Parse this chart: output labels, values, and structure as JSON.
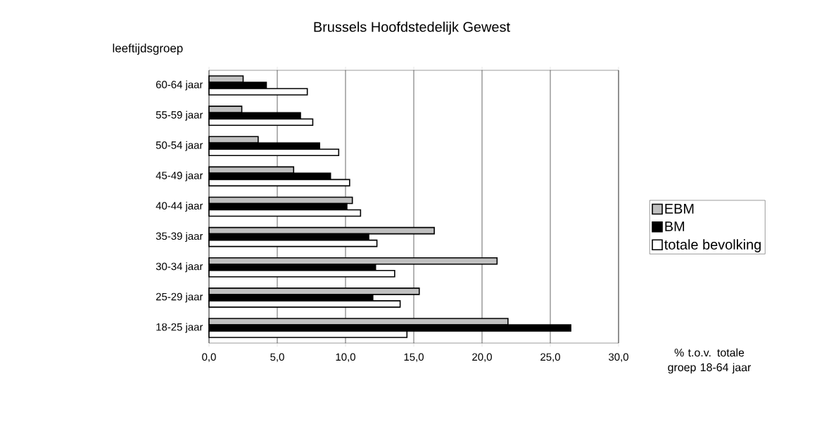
{
  "chart_data": {
    "type": "bar",
    "orientation": "horizontal",
    "title": "Brussels Hoofdstedelijk Gewest",
    "ylabel": "leeftijdsgroep",
    "xlabel": "% t.o.v. totale groep 18-64 jaar",
    "categories": [
      "60-64 jaar",
      "55-59 jaar",
      "50-54 jaar",
      "45-49 jaar",
      "40-44 jaar",
      "35-39 jaar",
      "30-34 jaar",
      "25-29 jaar",
      "18-25 jaar"
    ],
    "series": [
      {
        "name": "EBM",
        "color": "#c0c0c0",
        "values": [
          2.5,
          2.4,
          3.6,
          6.2,
          10.5,
          16.5,
          21.1,
          15.4,
          21.9
        ]
      },
      {
        "name": "BM",
        "color": "#000000",
        "values": [
          4.2,
          6.7,
          8.1,
          8.9,
          10.1,
          11.7,
          12.2,
          12.0,
          26.5
        ]
      },
      {
        "name": "totale bevolking",
        "color": "#ffffff",
        "values": [
          7.2,
          7.6,
          9.5,
          10.3,
          11.1,
          12.3,
          13.6,
          14.0,
          14.5
        ]
      }
    ],
    "xlim": [
      0,
      30
    ],
    "xticks": [
      {
        "value": 0,
        "label": "0,0"
      },
      {
        "value": 5,
        "label": "5,0"
      },
      {
        "value": 10,
        "label": "10,0"
      },
      {
        "value": 15,
        "label": "15,0"
      },
      {
        "value": 20,
        "label": "20,0"
      },
      {
        "value": 25,
        "label": "25,0"
      },
      {
        "value": 30,
        "label": "30,0"
      }
    ],
    "grid": "x",
    "legend": "right"
  }
}
